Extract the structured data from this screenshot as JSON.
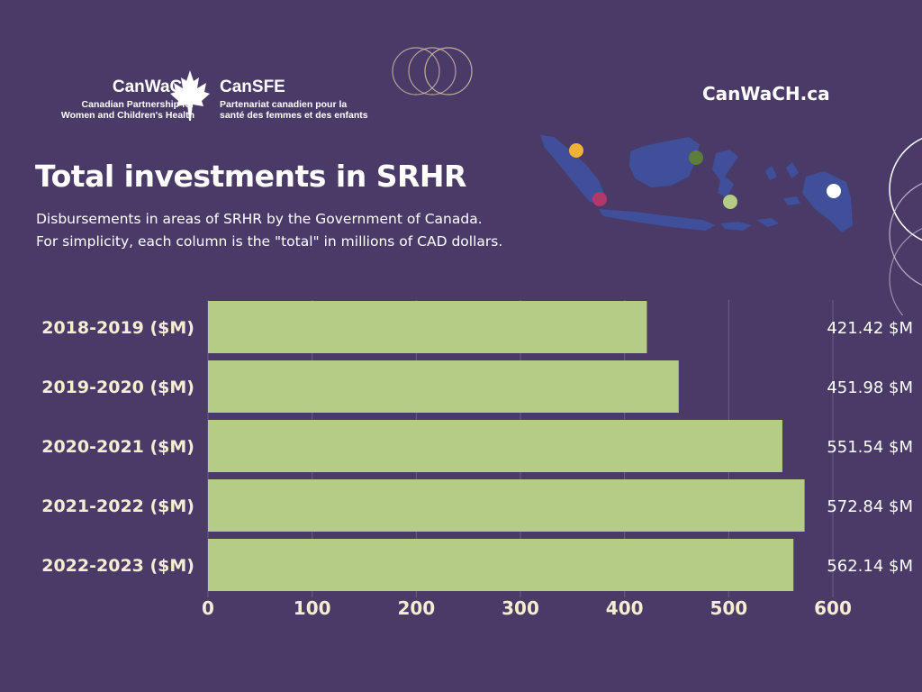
{
  "header": {
    "logo_left_name": "CanWaCH",
    "logo_left_sub1": "Canadian Partnership for",
    "logo_left_sub2": "Women and Children's Health",
    "logo_right_name": "CanSFE",
    "logo_right_sub1": "Partenariat canadien pour la",
    "logo_right_sub2": "santé des femmes et des enfants",
    "site_url": "CanWaCH.ca"
  },
  "title": "Total investments in SRHR",
  "subtitle_line1": "Disbursements in areas of SRHR by the Government of Canada.",
  "subtitle_line2": "For simplicity, each column is the \"total\" in millions of CAD dollars.",
  "colors": {
    "background": "#4a3a68",
    "bar": "#b5cc87",
    "map": "#3f4f9a",
    "dot_yellow": "#f2b134",
    "dot_magenta": "#b3386a",
    "dot_olive": "#5e7d3a",
    "dot_lightgreen": "#b5cc87",
    "dot_white": "#ffffff"
  },
  "chart_data": {
    "type": "bar",
    "orientation": "horizontal",
    "categories": [
      "2018-2019 ($M)",
      "2019-2020 ($M)",
      "2020-2021 ($M)",
      "2021-2022 ($M)",
      "2022-2023 ($M)"
    ],
    "values": [
      421.42,
      451.98,
      551.54,
      572.84,
      562.14
    ],
    "value_labels": [
      "421.42 $M",
      "451.98 $M",
      "551.54 $M",
      "572.84 $M",
      "562.14 $M"
    ],
    "xlim": [
      0,
      600
    ],
    "xticks": [
      "0",
      "100",
      "200",
      "300",
      "400",
      "500",
      "600"
    ],
    "grid": true
  }
}
